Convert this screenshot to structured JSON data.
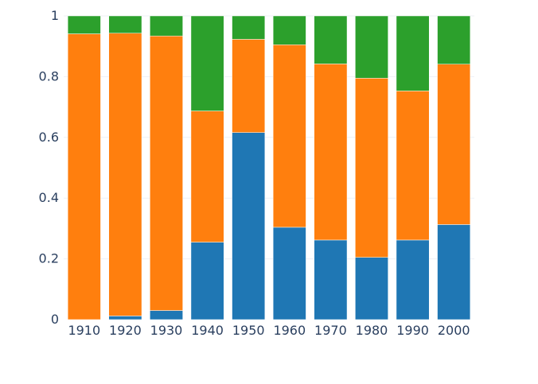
{
  "chart_data": {
    "type": "bar",
    "stacked": true,
    "categories": [
      "1910",
      "1920",
      "1930",
      "1940",
      "1950",
      "1960",
      "1970",
      "1980",
      "1990",
      "2000"
    ],
    "series": [
      {
        "color": "#1f77b4",
        "values": [
          0.0,
          0.012,
          0.03,
          0.255,
          0.616,
          0.304,
          0.262,
          0.205,
          0.262,
          0.313
        ]
      },
      {
        "color": "#ff7f0e",
        "values": [
          0.941,
          0.931,
          0.904,
          0.432,
          0.307,
          0.601,
          0.58,
          0.59,
          0.491,
          0.528
        ]
      },
      {
        "color": "#2ca02c",
        "values": [
          0.059,
          0.057,
          0.066,
          0.313,
          0.077,
          0.095,
          0.158,
          0.205,
          0.247,
          0.159
        ]
      }
    ],
    "ylim": [
      0,
      1
    ],
    "yticks": [
      0,
      0.2,
      0.4,
      0.6,
      0.8,
      1
    ],
    "ytick_labels": [
      "0",
      "0.2",
      "0.4",
      "0.6",
      "0.8",
      "1"
    ],
    "grid": true,
    "legend": false
  }
}
